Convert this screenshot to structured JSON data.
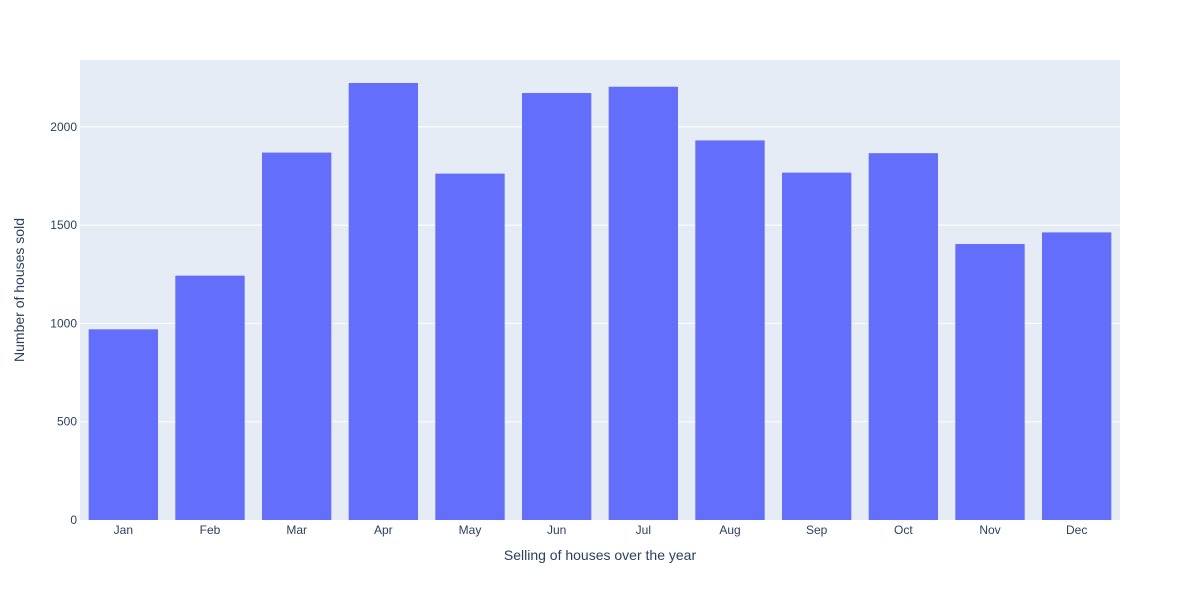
{
  "chart_data": {
    "type": "bar",
    "title": "",
    "xlabel": "Selling of houses over the year",
    "ylabel": "Number of houses sold",
    "categories": [
      "Jan",
      "Feb",
      "Mar",
      "Apr",
      "May",
      "Jun",
      "Jul",
      "Aug",
      "Sep",
      "Oct",
      "Nov",
      "Dec"
    ],
    "values": [
      970,
      1243,
      1869,
      2223,
      1762,
      2172,
      2204,
      1931,
      1767,
      1866,
      1404,
      1463
    ],
    "ylim": [
      0,
      2340
    ],
    "yticks": [
      0,
      500,
      1000,
      1500,
      2000
    ],
    "grid": true,
    "colors": {
      "bar": "#636efa",
      "plot_bg": "#e5ecf6",
      "gridline": "#ffffff",
      "text": "#2a3f5f"
    }
  }
}
